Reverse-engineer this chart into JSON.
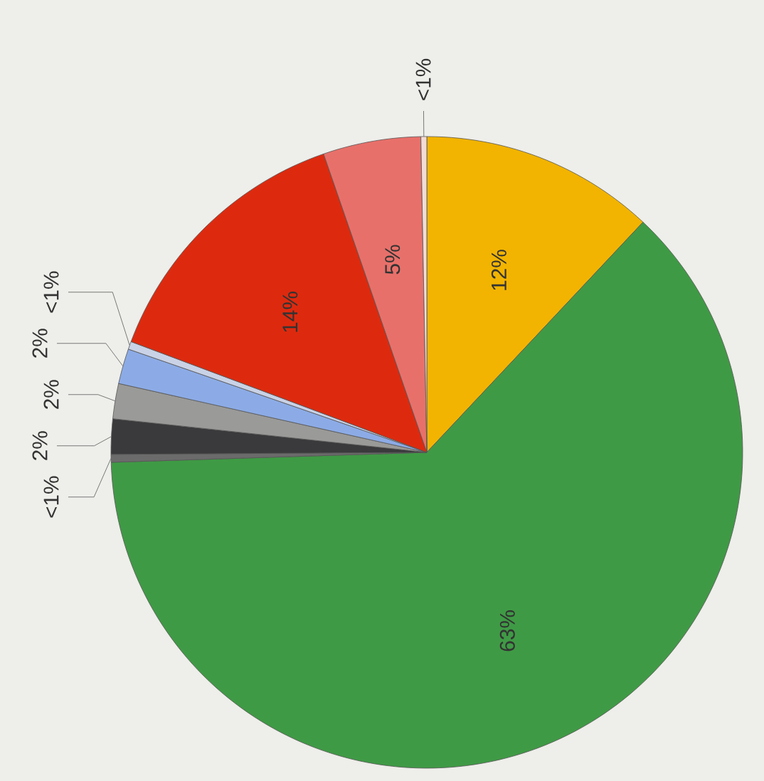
{
  "chart_data": {
    "type": "pie",
    "categories": [
      null,
      null,
      null,
      null,
      null,
      null,
      null,
      null,
      null,
      null
    ],
    "values": [
      12,
      62.5,
      0.4,
      1.8,
      1.8,
      1.8,
      0.4,
      14,
      5,
      0.3
    ],
    "value_labels": [
      "12%",
      "63%",
      "<1%",
      "2%",
      "2%",
      "2%",
      "<1%",
      "14%",
      "5%",
      "<1%"
    ],
    "colors": [
      "#f2b400",
      "#3f9a45",
      "#6b6b6b",
      "#3a3a3c",
      "#9a9a98",
      "#8cabe6",
      "#c9d2e6",
      "#dd2a0f",
      "#e8706a",
      "#f2dcd6"
    ]
  }
}
